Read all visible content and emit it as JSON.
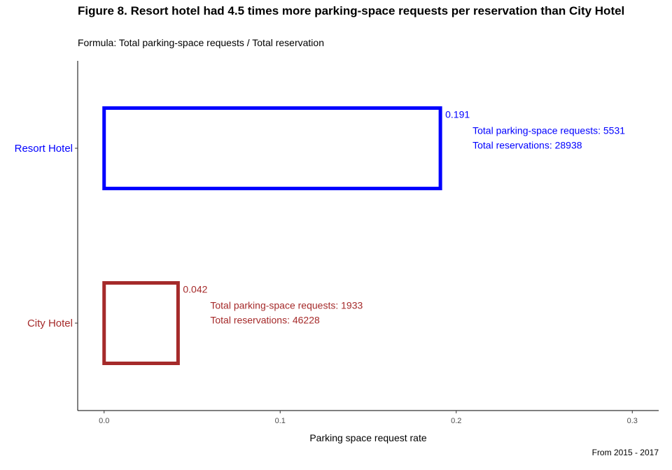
{
  "chart_data": {
    "type": "bar",
    "orientation": "horizontal",
    "title": "Figure 8. Resort hotel had 4.5 times more parking-space requests per reservation than City Hotel",
    "subtitle": "Formula: Total parking-space requests / Total reservation",
    "xlabel": "Parking space request rate",
    "ylabel": "",
    "caption": "From 2015 - 2017",
    "xlim": [
      -0.015,
      0.315
    ],
    "x_ticks": [
      0.0,
      0.1,
      0.2,
      0.3
    ],
    "x_tick_labels": [
      "0.0",
      "0.1",
      "0.2",
      "0.3"
    ],
    "grid": false,
    "categories": [
      "Resort Hotel",
      "City Hotel"
    ],
    "values": [
      0.191,
      0.042
    ],
    "value_labels": [
      "0.191",
      "0.042"
    ],
    "annotations": [
      [
        "Total parking-space requests: 5531",
        "Total reservations: 28938"
      ],
      [
        "Total parking-space requests: 1933",
        "Total reservations: 46228"
      ]
    ],
    "colors": [
      "#0000ff",
      "#a52a2a"
    ]
  }
}
